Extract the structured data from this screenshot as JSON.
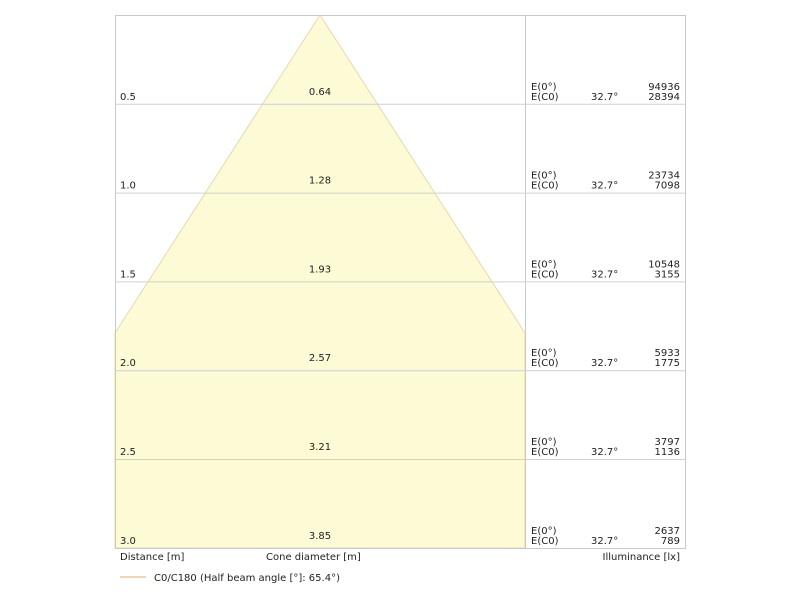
{
  "rows": [
    {
      "distance": "0.5",
      "diameter": "0.64",
      "label_e0": "E(0°)",
      "label_ec0": "E(C0)",
      "angle": "32.7°",
      "e0": "94936",
      "ec0": "28394"
    },
    {
      "distance": "1.0",
      "diameter": "1.28",
      "label_e0": "E(0°)",
      "label_ec0": "E(C0)",
      "angle": "32.7°",
      "e0": "23734",
      "ec0": "7098"
    },
    {
      "distance": "1.5",
      "diameter": "1.93",
      "label_e0": "E(0°)",
      "label_ec0": "E(C0)",
      "angle": "32.7°",
      "e0": "10548",
      "ec0": "3155"
    },
    {
      "distance": "2.0",
      "diameter": "2.57",
      "label_e0": "E(0°)",
      "label_ec0": "E(C0)",
      "angle": "32.7°",
      "e0": "5933",
      "ec0": "1775"
    },
    {
      "distance": "2.5",
      "diameter": "3.21",
      "label_e0": "E(0°)",
      "label_ec0": "E(C0)",
      "angle": "32.7°",
      "e0": "3797",
      "ec0": "1136"
    },
    {
      "distance": "3.0",
      "diameter": "3.85",
      "label_e0": "E(0°)",
      "label_ec0": "E(C0)",
      "angle": "32.7°",
      "e0": "2637",
      "ec0": "789"
    }
  ],
  "footer": {
    "distance": "Distance [m]",
    "diameter": "Cone diameter [m]",
    "illuminance": "Illuminance [lx]"
  },
  "legend": {
    "label": "C0/C180 (Half beam angle [°]: 65.4°)"
  }
}
